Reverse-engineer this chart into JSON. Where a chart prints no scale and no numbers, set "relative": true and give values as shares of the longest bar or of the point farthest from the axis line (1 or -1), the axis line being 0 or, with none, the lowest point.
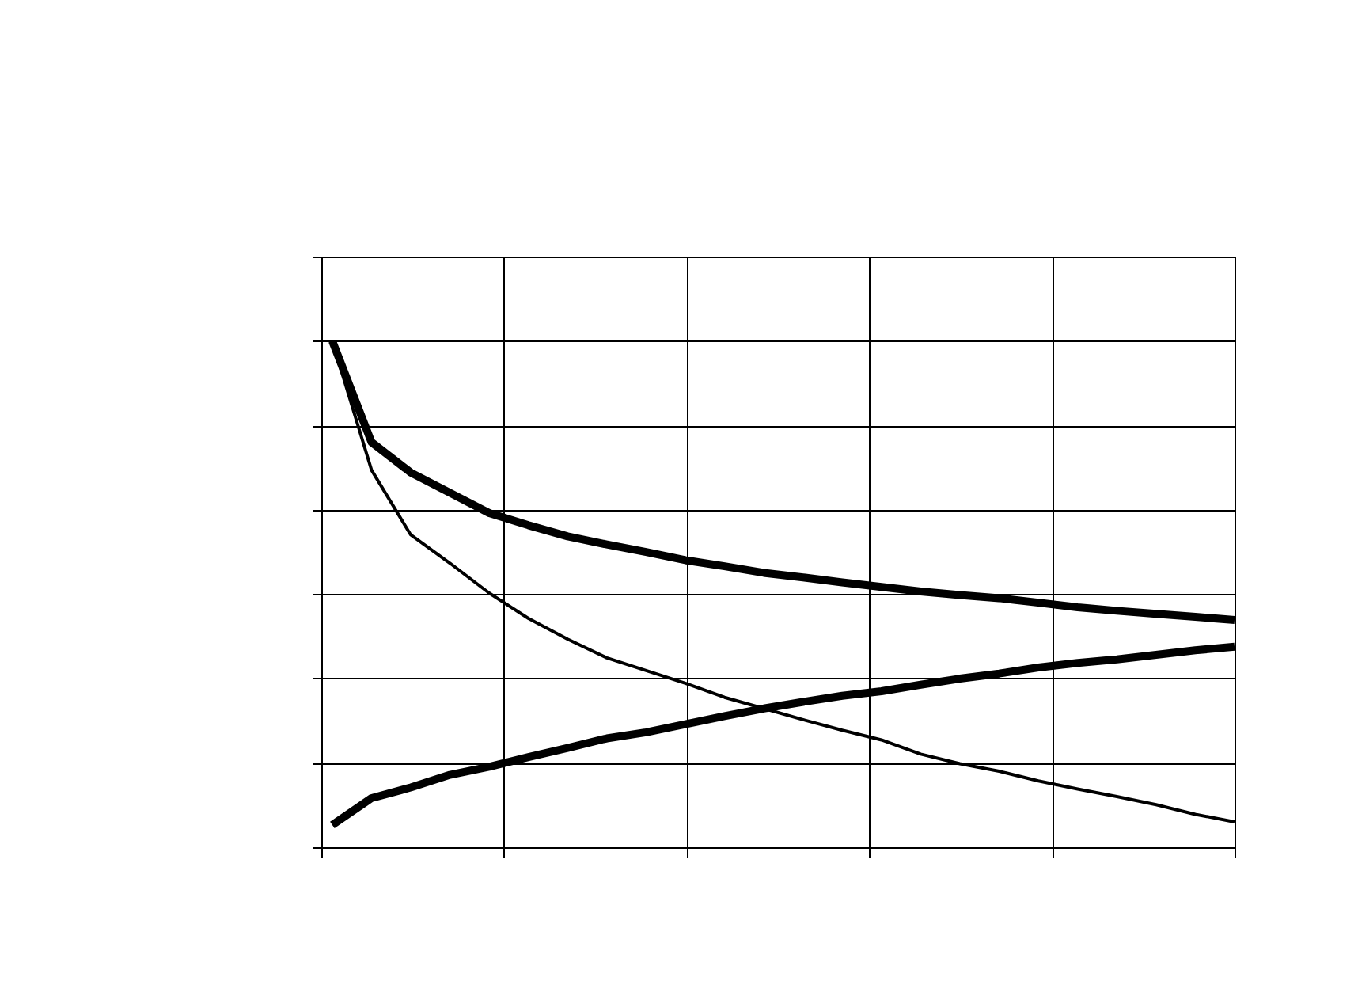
{
  "chart_data": {
    "type": "line",
    "relative": true,
    "grid": true,
    "marker": "none",
    "line_style": "solid",
    "categories": [
      null,
      null,
      null,
      null,
      null,
      null,
      null,
      null,
      null,
      null,
      null,
      null,
      null,
      null,
      null,
      null,
      null,
      null,
      null,
      null,
      null,
      null,
      null,
      null
    ],
    "series": [
      {
        "color": "#000000",
        "values": [
          1.0,
          0.8,
          0.74,
          0.7,
          0.66,
          0.636,
          0.614,
          0.598,
          0.583,
          0.567,
          0.555,
          0.542,
          0.533,
          0.523,
          0.514,
          0.505,
          0.498,
          0.492,
          0.483,
          0.474,
          0.467,
          0.461,
          0.455,
          0.449
        ]
      },
      {
        "color": "#000000",
        "values": [
          1.0,
          0.745,
          0.617,
          0.561,
          0.502,
          0.452,
          0.411,
          0.374,
          0.349,
          0.324,
          0.296,
          0.274,
          0.252,
          0.231,
          0.212,
          0.184,
          0.165,
          0.15,
          0.131,
          0.115,
          0.1,
          0.084,
          0.065,
          0.05
        ]
      },
      {
        "color": "#000000",
        "values": [
          0.044,
          0.097,
          0.118,
          0.143,
          0.159,
          0.178,
          0.196,
          0.215,
          0.227,
          0.243,
          0.259,
          0.274,
          0.287,
          0.299,
          0.308,
          0.321,
          0.333,
          0.343,
          0.355,
          0.364,
          0.371,
          0.38,
          0.389,
          0.396
        ]
      }
    ]
  }
}
